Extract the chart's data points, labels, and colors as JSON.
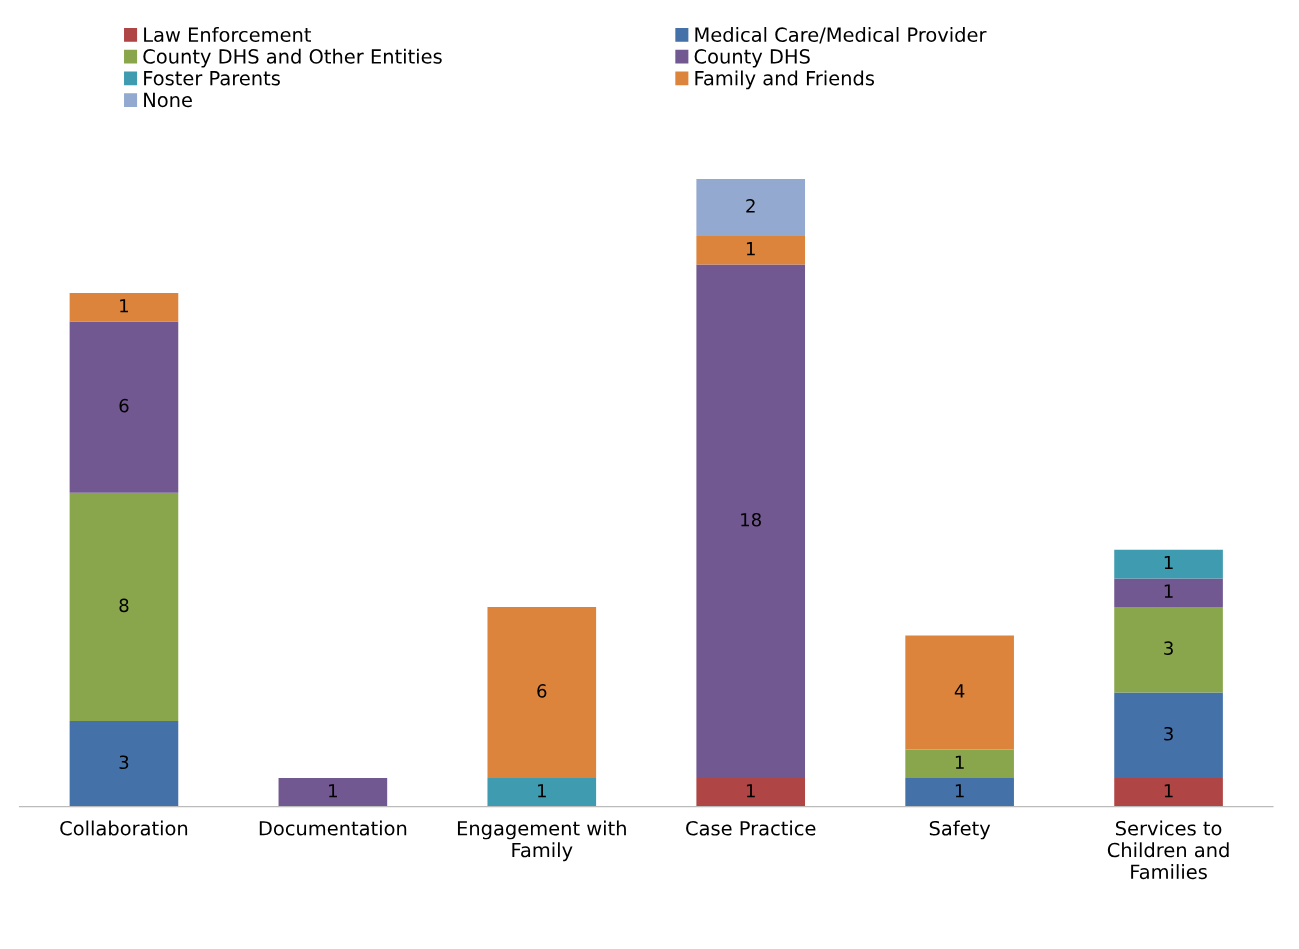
{
  "chart_data": {
    "type": "bar",
    "stacked": true,
    "data_labels": true,
    "legend": "top left",
    "grid": false,
    "categories": [
      "Collaboration",
      "Documentation",
      "Engagement with\nFamily",
      "Case Practice",
      "Safety",
      "Services to\nChildren and\nFamilies"
    ],
    "series": [
      {
        "name": "Law Enforcement",
        "color": "#b04545",
        "values": [
          null,
          null,
          null,
          1,
          null,
          1
        ]
      },
      {
        "name": "Medical Care/Medical Provider",
        "color": "#4472a8",
        "values": [
          3,
          null,
          null,
          null,
          1,
          3
        ]
      },
      {
        "name": "County DHS and Other Entities",
        "color": "#8aa64c",
        "values": [
          8,
          null,
          null,
          null,
          1,
          3
        ]
      },
      {
        "name": "County DHS",
        "color": "#725890",
        "values": [
          6,
          1,
          null,
          18,
          null,
          1
        ]
      },
      {
        "name": "Foster Parents",
        "color": "#3e9bb0",
        "values": [
          null,
          null,
          1,
          null,
          null,
          1
        ]
      },
      {
        "name": "Family and Friends",
        "color": "#dd843c",
        "values": [
          1,
          null,
          6,
          1,
          4,
          null
        ]
      },
      {
        "name": "None",
        "color": "#93a9d0",
        "values": [
          null,
          null,
          null,
          2,
          null,
          null
        ]
      }
    ]
  }
}
